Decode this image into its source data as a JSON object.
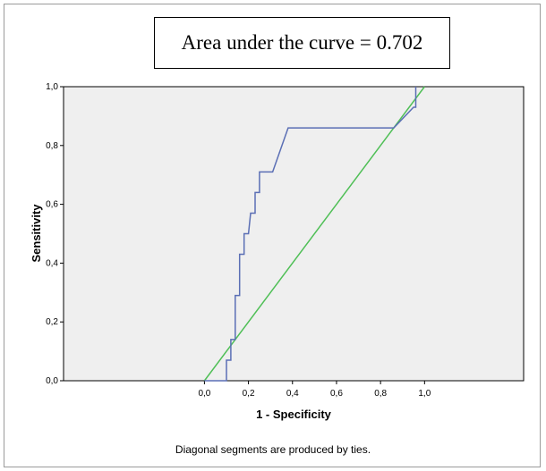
{
  "annotation": "Area under the curve = 0.702",
  "footnote": "Diagonal segments are produced by ties.",
  "colors": {
    "roc": "#5b6fb5",
    "reference": "#4fbf56",
    "plot_bg": "#efefef"
  },
  "chart_data": {
    "type": "line",
    "xlabel": "1 - Specificity",
    "ylabel": "Sensitivity",
    "xlim": [
      -0.64,
      1.45
    ],
    "ylim": [
      0,
      1
    ],
    "xticks": [
      "0,0",
      "0,2",
      "0,4",
      "0,6",
      "0,8",
      "1,0"
    ],
    "yticks": [
      "0,0",
      "0,2",
      "0,4",
      "0,6",
      "0,8",
      "1,0"
    ],
    "grid": false,
    "series": [
      {
        "x": [
          0.0,
          0.1,
          0.1,
          0.12,
          0.12,
          0.14,
          0.14,
          0.16,
          0.16,
          0.18,
          0.18,
          0.2,
          0.21,
          0.21,
          0.23,
          0.23,
          0.25,
          0.25,
          0.31,
          0.38,
          0.86,
          0.95,
          0.96,
          0.96
        ],
        "y": [
          0.0,
          0.0,
          0.07,
          0.07,
          0.14,
          0.14,
          0.29,
          0.29,
          0.43,
          0.43,
          0.5,
          0.5,
          0.57,
          0.57,
          0.57,
          0.64,
          0.64,
          0.71,
          0.71,
          0.86,
          0.86,
          0.93,
          0.93,
          1.0
        ]
      },
      {
        "x": [
          0.0,
          1.0
        ],
        "y": [
          0.0,
          1.0
        ]
      }
    ]
  }
}
